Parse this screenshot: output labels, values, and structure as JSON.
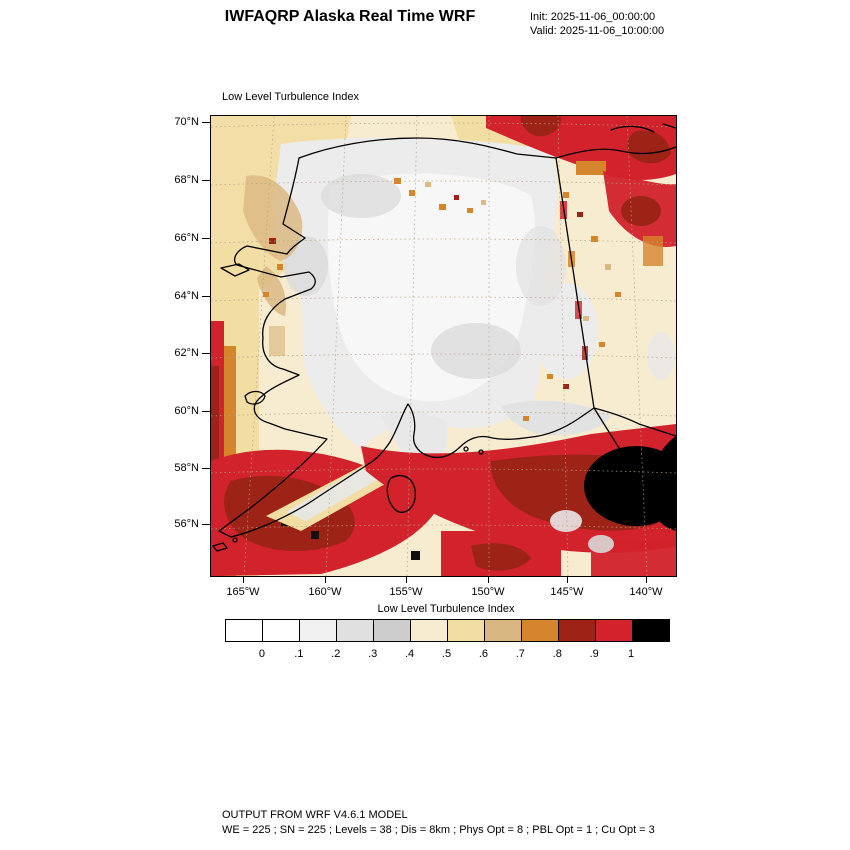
{
  "header": {
    "title": "IWFAQRP Alaska Real Time WRF",
    "init": "Init: 2025-11-06_00:00:00",
    "valid": "Valid: 2025-11-06_10:00:00"
  },
  "map": {
    "field_label": "Low Level Turbulence Index",
    "lat_ticks": [
      "70°N",
      "68°N",
      "66°N",
      "64°N",
      "62°N",
      "60°N",
      "58°N",
      "56°N"
    ],
    "lon_ticks": [
      "165°W",
      "160°W",
      "155°W",
      "150°W",
      "145°W",
      "140°W"
    ]
  },
  "colorbar": {
    "title": "Low Level Turbulence Index",
    "tick_labels": [
      "0",
      ".1",
      ".2",
      ".3",
      ".4",
      ".5",
      ".6",
      ".7",
      ".8",
      ".9",
      "1"
    ],
    "colors": [
      "#ffffff",
      "#ffffff",
      "#f0f0f0",
      "#e0e0e0",
      "#cdcdcd",
      "#f7ecd0",
      "#f2dda3",
      "#d8b67f",
      "#d5862d",
      "#9e2317",
      "#d2222b",
      "#000000"
    ]
  },
  "footer": {
    "line1": "OUTPUT FROM WRF V4.6.1 MODEL",
    "line2": "WE = 225 ; SN = 225 ; Levels = 38 ; Dis = 8km ; Phys Opt = 8 ; PBL Opt = 1 ; Cu Opt = 3"
  },
  "chart_data": {
    "type": "heatmap",
    "title": "Low Level Turbulence Index",
    "region": "Alaska (WRF real-time domain)",
    "x_axis": {
      "label": "longitude",
      "ticks": [
        "165°W",
        "160°W",
        "155°W",
        "150°W",
        "145°W",
        "140°W"
      ]
    },
    "y_axis": {
      "label": "latitude",
      "ticks": [
        "70°N",
        "68°N",
        "66°N",
        "64°N",
        "62°N",
        "60°N",
        "58°N",
        "56°N"
      ]
    },
    "colorbar": {
      "title": "Low Level Turbulence Index",
      "levels": [
        0,
        0.1,
        0.2,
        0.3,
        0.4,
        0.5,
        0.6,
        0.7,
        0.8,
        0.9,
        1
      ],
      "colors": [
        "#ffffff",
        "#ffffff",
        "#f0f0f0",
        "#e0e0e0",
        "#cdcdcd",
        "#f7ecd0",
        "#f2dda3",
        "#d8b67f",
        "#d5862d",
        "#9e2317",
        "#d2222b",
        "#000000"
      ]
    },
    "qualitative_field": [
      {
        "area": "interior Alaska (62-67N, 160-146W)",
        "value_range": "0-0.3 (white/light gray)"
      },
      {
        "area": "north and northwest Alaska margins",
        "value_range": "0.3-0.6 (gray/cream)"
      },
      {
        "area": "west edge of domain near 165W Bering coast",
        "value_range": "0.7-1 (orange/red bands)"
      },
      {
        "area": "Bristol Bay / Alaska Peninsula (55-58N, 162-154W)",
        "value_range": "0.8-1 with small >1 spots"
      },
      {
        "area": "Gulf of Alaska coast (57-60N, 152-140W)",
        "value_range": "0.8-1 (dark red/red)"
      },
      {
        "area": "southeast Gulf of Alaska (56-59N, 143-139W)",
        "value_range": ">1 (black maximum)"
      },
      {
        "area": "northeast corner near Yukon border (67-70N, 145-139W)",
        "value_range": "0.8-1 (red/dark red)"
      }
    ]
  }
}
